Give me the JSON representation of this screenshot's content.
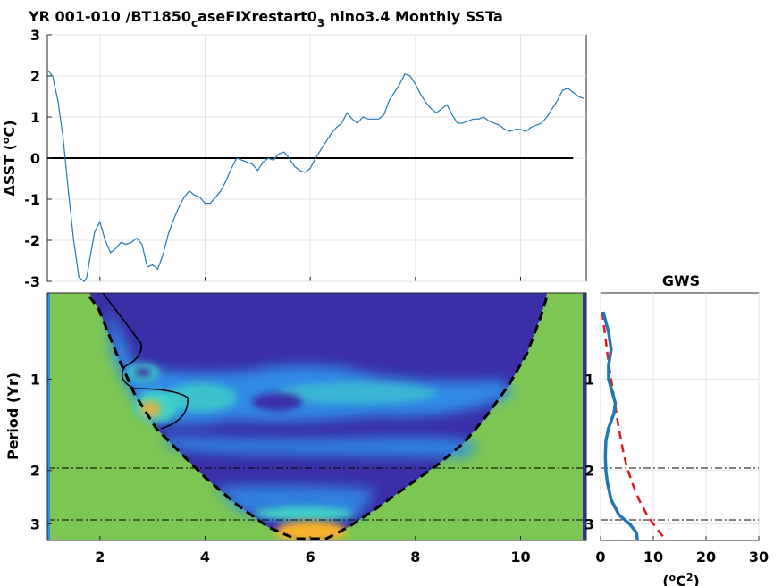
{
  "title": {
    "part1": "YR 001-010 /BT1850",
    "sub1": "c",
    "part2": "aseFIXrestart0",
    "sub2": "3",
    "part3": " nino3.4 Monthly SSTa"
  },
  "chart_data": [
    {
      "type": "line",
      "ylabel": "ΔSST (°C)",
      "ylabel_delta": "Δ",
      "ylabel_text": "SST (",
      "ylabel_deg": "o",
      "ylabel_unit": "C)",
      "xlim": [
        1,
        11.25
      ],
      "ylim": [
        -3,
        3
      ],
      "x_ticks": [
        "2",
        "4",
        "6",
        "8",
        "10"
      ],
      "y_ticks": [
        "3",
        "2",
        "1",
        "0",
        "-1",
        "-2",
        "-3"
      ],
      "grid": true,
      "line_color": "#1f77b4",
      "zero_line": true,
      "series": [
        {
          "x": [
            1.0,
            1.1,
            1.2,
            1.3,
            1.4,
            1.5,
            1.6,
            1.7,
            1.75,
            1.8,
            1.9,
            2.0,
            2.1,
            2.2,
            2.3,
            2.4,
            2.5,
            2.6,
            2.7,
            2.8,
            2.9,
            3.0,
            3.1,
            3.2,
            3.3,
            3.4,
            3.5,
            3.6,
            3.7,
            3.8,
            3.9,
            4.0,
            4.1,
            4.2,
            4.3,
            4.4,
            4.5,
            4.6,
            4.7,
            4.8,
            4.9,
            5.0,
            5.1,
            5.2,
            5.3,
            5.4,
            5.5,
            5.6,
            5.7,
            5.8,
            5.9,
            6.0,
            6.1,
            6.2,
            6.3,
            6.4,
            6.5,
            6.6,
            6.7,
            6.8,
            6.9,
            7.0,
            7.1,
            7.2,
            7.3,
            7.4,
            7.5,
            7.6,
            7.7,
            7.8,
            7.9,
            8.0,
            8.1,
            8.2,
            8.3,
            8.4,
            8.5,
            8.6,
            8.7,
            8.8,
            8.9,
            9.0,
            9.1,
            9.2,
            9.3,
            9.4,
            9.5,
            9.6,
            9.7,
            9.8,
            9.9,
            10.0,
            10.1,
            10.2,
            10.3,
            10.4,
            10.5,
            10.6,
            10.7,
            10.8,
            10.9,
            11.0,
            11.1,
            11.2
          ],
          "y": [
            2.15,
            2.0,
            1.4,
            0.5,
            -0.8,
            -2.0,
            -2.9,
            -3.05,
            -2.9,
            -2.5,
            -1.8,
            -1.55,
            -2.0,
            -2.3,
            -2.2,
            -2.05,
            -2.1,
            -2.05,
            -1.95,
            -2.1,
            -2.65,
            -2.6,
            -2.7,
            -2.35,
            -1.85,
            -1.5,
            -1.2,
            -0.95,
            -0.8,
            -0.9,
            -0.95,
            -1.1,
            -1.1,
            -0.95,
            -0.8,
            -0.55,
            -0.25,
            0.0,
            -0.05,
            -0.1,
            -0.15,
            -0.3,
            -0.1,
            0.0,
            -0.05,
            0.1,
            0.15,
            0.0,
            -0.2,
            -0.3,
            -0.35,
            -0.25,
            0.0,
            0.2,
            0.4,
            0.6,
            0.75,
            0.85,
            1.1,
            0.95,
            0.85,
            1.0,
            0.95,
            0.95,
            0.95,
            1.05,
            1.4,
            1.6,
            1.8,
            2.05,
            2.0,
            1.8,
            1.55,
            1.35,
            1.2,
            1.1,
            1.2,
            1.3,
            1.05,
            0.85,
            0.85,
            0.9,
            0.95,
            0.95,
            1.0,
            0.9,
            0.85,
            0.8,
            0.7,
            0.65,
            0.7,
            0.7,
            0.65,
            0.75,
            0.8,
            0.85,
            1.0,
            1.2,
            1.4,
            1.65,
            1.7,
            1.6,
            1.5,
            1.45
          ]
        }
      ]
    },
    {
      "type": "heatmap",
      "ylabel": "Period (Yr)",
      "xlim": [
        1,
        11.25
      ],
      "x_ticks": [
        "2",
        "4",
        "6",
        "8",
        "10"
      ],
      "y_ticks": [
        "1",
        "2",
        "3"
      ],
      "y_scale": "log2",
      "cone_of_influence": true,
      "ref_period_lines": [
        2,
        3
      ],
      "colors": {
        "outside_coi": "#7cc653",
        "background_power": "#3a2fa6",
        "mid_power": "#2f8fe8",
        "high_power": "#3fd0c8",
        "peak_power": "#f5b22c"
      }
    },
    {
      "type": "line",
      "title": "GWS",
      "xlabel": "(°C²)",
      "xlabel_open": "(",
      "xlabel_deg": "o",
      "xlabel_unit": "C",
      "xlabel_sup": "2",
      "xlabel_close": ")",
      "xlim": [
        0,
        30
      ],
      "x_ticks": [
        "0",
        "10",
        "20",
        "30"
      ],
      "y_ticks": [
        "1",
        "2",
        "3"
      ],
      "grid": true,
      "series": [
        {
          "color": "#1f77b4",
          "style": "solid",
          "period": [
            0.6,
            0.7,
            0.8,
            0.9,
            1.0,
            1.1,
            1.2,
            1.3,
            1.45,
            1.6,
            1.8,
            2.0,
            2.2,
            2.5,
            2.8,
            3.0,
            3.2,
            3.4
          ],
          "power": [
            0.5,
            1.5,
            2.0,
            1.5,
            1.5,
            2.2,
            2.8,
            2.5,
            1.5,
            1.0,
            0.9,
            1.0,
            1.3,
            2.0,
            3.5,
            5.5,
            6.8,
            7.0
          ]
        },
        {
          "color": "#e8141e",
          "style": "dashed",
          "period": [
            0.6,
            0.7,
            0.8,
            0.9,
            1.0,
            1.2,
            1.4,
            1.6,
            1.8,
            2.0,
            2.2,
            2.5,
            2.8,
            3.0,
            3.2,
            3.4
          ],
          "power": [
            0.3,
            0.8,
            1.2,
            1.6,
            2.0,
            2.7,
            3.3,
            3.9,
            4.5,
            5.2,
            6.0,
            7.3,
            8.8,
            10.0,
            11.2,
            12.5
          ]
        }
      ]
    }
  ]
}
